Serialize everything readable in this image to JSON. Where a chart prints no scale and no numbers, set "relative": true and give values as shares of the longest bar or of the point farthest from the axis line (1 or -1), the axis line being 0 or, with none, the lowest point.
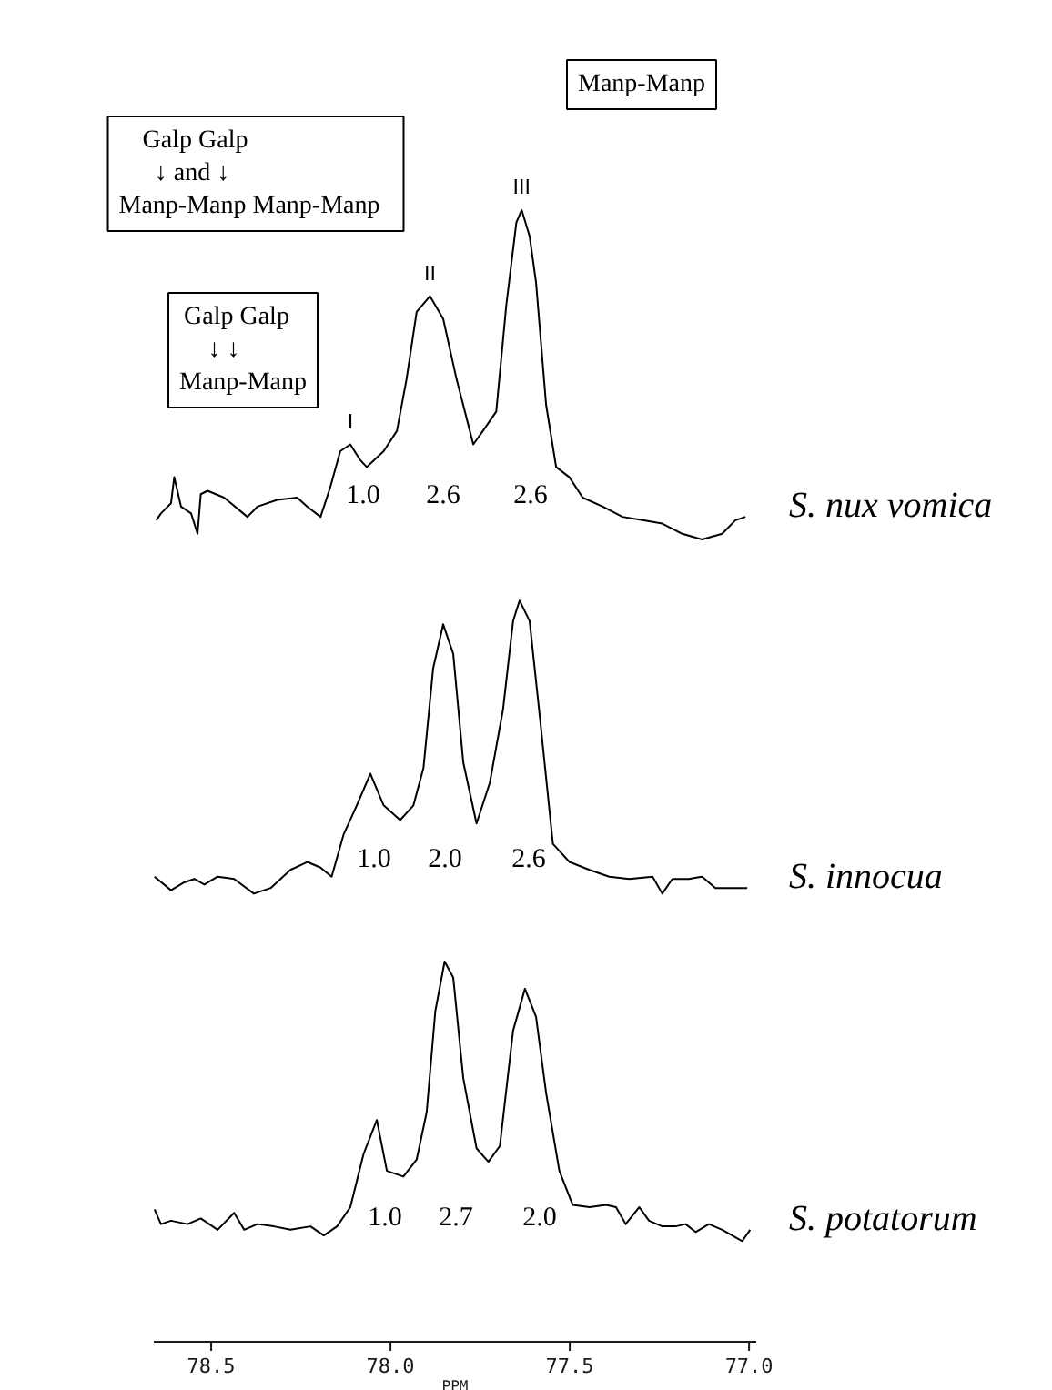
{
  "chart_data": {
    "type": "line",
    "relative": true,
    "xlim": [
      78.66,
      76.98
    ],
    "xlabel": "PPM",
    "xticks": [
      78.5,
      {
        "value": 78.0,
        "label": "78.0"
      },
      77.5,
      {
        "value": 77.0,
        "label": "77.0"
      }
    ],
    "annotations": [
      "Manp-Manp",
      "Galp                    Galp\n↓           and           ↓\nManp-Manp   Manp-Manp",
      "Galp   Galp\n↓       ↓\nManp-Manp",
      {
        "text": "I",
        "x": 78.112,
        "y": 0.793
      },
      {
        "text": "II",
        "x": 77.89,
        "y": 0.924
      },
      {
        "text": "III",
        "x": 77.634,
        "y": 1.0
      },
      "1.0",
      "2.6",
      "2.6",
      "1.0",
      "2.0",
      "2.6",
      "1.0",
      "2.7",
      "2.0"
    ],
    "series": [
      {
        "name": "S. nux vomica",
        "color": "#000000",
        "x": [
          78.653,
          78.64,
          78.612,
          78.603,
          78.584,
          78.556,
          78.538,
          78.529,
          78.51,
          78.464,
          78.399,
          78.371,
          78.316,
          78.26,
          78.232,
          78.195,
          78.168,
          78.14,
          78.112,
          78.084,
          78.066,
          78.019,
          77.982,
          77.955,
          77.927,
          77.89,
          77.853,
          77.816,
          77.769,
          77.742,
          77.705,
          77.677,
          77.649,
          77.634,
          77.612,
          77.594,
          77.566,
          77.538,
          77.501,
          77.464,
          77.408,
          77.353,
          77.297,
          77.242,
          77.186,
          77.131,
          77.075,
          77.038,
          77.01
        ],
        "values": [
          0.726,
          0.732,
          0.741,
          0.764,
          0.738,
          0.732,
          0.714,
          0.749,
          0.752,
          0.746,
          0.729,
          0.738,
          0.744,
          0.746,
          0.738,
          0.729,
          0.755,
          0.787,
          0.793,
          0.779,
          0.773,
          0.787,
          0.805,
          0.851,
          0.91,
          0.924,
          0.904,
          0.851,
          0.793,
          0.805,
          0.822,
          0.916,
          0.989,
          1.0,
          0.977,
          0.936,
          0.828,
          0.773,
          0.764,
          0.746,
          0.738,
          0.729,
          0.726,
          0.723,
          0.714,
          0.709,
          0.714,
          0.726,
          0.729
        ]
      },
      {
        "name": "S. innocua",
        "color": "#000000",
        "x": [
          78.658,
          78.612,
          78.575,
          78.547,
          78.519,
          78.482,
          78.436,
          78.381,
          78.334,
          78.279,
          78.232,
          78.195,
          78.164,
          78.131,
          78.094,
          78.056,
          78.019,
          77.973,
          77.936,
          77.908,
          77.881,
          77.853,
          77.825,
          77.797,
          77.76,
          77.723,
          77.686,
          77.658,
          77.64,
          77.612,
          77.584,
          77.547,
          77.501,
          77.445,
          77.39,
          77.334,
          77.269,
          77.242,
          77.214,
          77.168,
          77.131,
          77.094,
          77.057,
          77.005
        ],
        "values": [
          0.411,
          0.399,
          0.406,
          0.409,
          0.404,
          0.411,
          0.409,
          0.396,
          0.401,
          0.417,
          0.424,
          0.419,
          0.411,
          0.448,
          0.474,
          0.502,
          0.474,
          0.461,
          0.474,
          0.507,
          0.595,
          0.634,
          0.608,
          0.512,
          0.458,
          0.494,
          0.559,
          0.637,
          0.655,
          0.637,
          0.554,
          0.44,
          0.424,
          0.417,
          0.411,
          0.409,
          0.411,
          0.396,
          0.409,
          0.409,
          0.411,
          0.401,
          0.401,
          0.401
        ]
      },
      {
        "name": "S. potatorum",
        "color": "#000000",
        "x": [
          78.658,
          78.64,
          78.612,
          78.566,
          78.529,
          78.482,
          78.436,
          78.408,
          78.371,
          78.325,
          78.279,
          78.223,
          78.186,
          78.149,
          78.112,
          78.075,
          78.038,
          78.01,
          77.964,
          77.927,
          77.899,
          77.875,
          77.849,
          77.825,
          77.797,
          77.76,
          77.727,
          77.695,
          77.658,
          77.625,
          77.594,
          77.566,
          77.529,
          77.492,
          77.445,
          77.399,
          77.371,
          77.344,
          77.306,
          77.279,
          77.242,
          77.205,
          77.177,
          77.149,
          77.112,
          77.075,
          77.019,
          76.997
        ],
        "values": [
          0.117,
          0.104,
          0.107,
          0.104,
          0.109,
          0.099,
          0.114,
          0.099,
          0.104,
          0.102,
          0.099,
          0.102,
          0.094,
          0.102,
          0.119,
          0.166,
          0.196,
          0.151,
          0.146,
          0.161,
          0.203,
          0.292,
          0.336,
          0.322,
          0.233,
          0.171,
          0.159,
          0.173,
          0.275,
          0.312,
          0.287,
          0.22,
          0.151,
          0.121,
          0.119,
          0.121,
          0.119,
          0.104,
          0.119,
          0.107,
          0.102,
          0.102,
          0.104,
          0.097,
          0.104,
          0.099,
          0.089,
          0.099
        ]
      }
    ]
  }
}
